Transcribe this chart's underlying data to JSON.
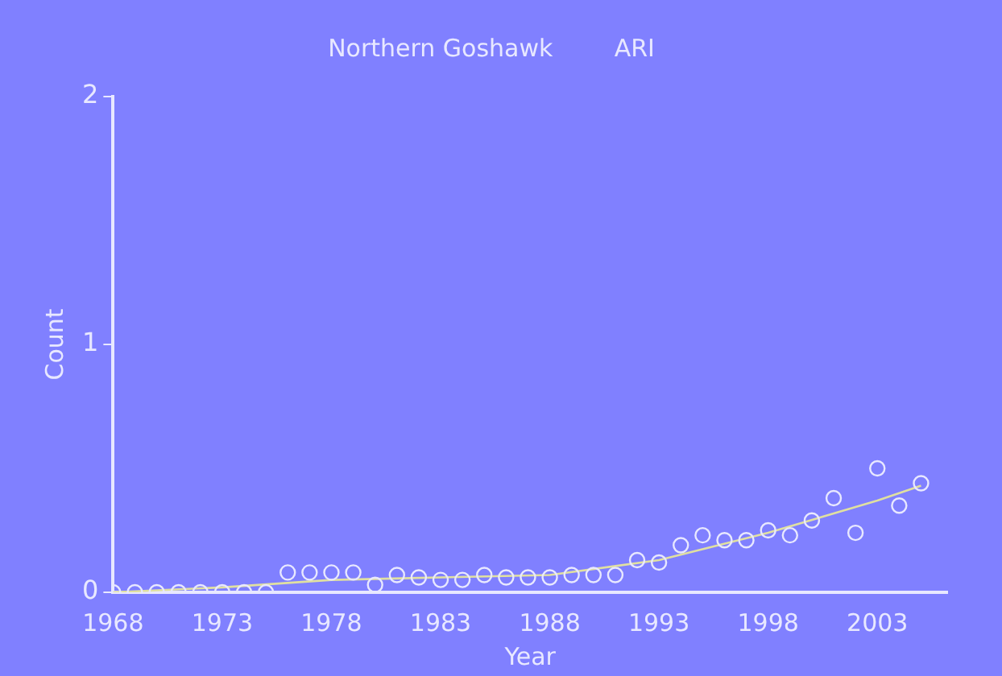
{
  "chart_data": {
    "type": "scatter",
    "title": "Northern Goshawk        ARI",
    "xlabel": "Year",
    "ylabel": "Count",
    "xlim": [
      1968,
      2006.2
    ],
    "xticks": [
      1968,
      1973,
      1978,
      1983,
      1988,
      1993,
      1998,
      2003
    ],
    "ylim": [
      0,
      2
    ],
    "yticks": [
      0,
      1,
      2
    ],
    "grid": false,
    "legend": false,
    "marker": "circle",
    "series": [
      {
        "type": "scatter",
        "color": "#e8e8ff",
        "x": [
          1968,
          1969,
          1970,
          1971,
          1972,
          1973,
          1974,
          1975,
          1976,
          1977,
          1978,
          1979,
          1980,
          1981,
          1982,
          1983,
          1984,
          1985,
          1986,
          1987,
          1988,
          1989,
          1990,
          1991,
          1992,
          1993,
          1994,
          1995,
          1996,
          1997,
          1998,
          1999,
          2000,
          2001,
          2002,
          2003,
          2004,
          2005
        ],
        "values": [
          0,
          0,
          0,
          0,
          0,
          0,
          0,
          0,
          0.08,
          0.08,
          0.08,
          0.08,
          0.03,
          0.07,
          0.06,
          0.05,
          0.05,
          0.07,
          0.06,
          0.06,
          0.06,
          0.07,
          0.07,
          0.07,
          0.13,
          0.12,
          0.19,
          0.23,
          0.21,
          0.21,
          0.25,
          0.23,
          0.29,
          0.38,
          0.24,
          0.5,
          0.35,
          0.44
        ]
      },
      {
        "type": "line",
        "color": "#e0e0a0",
        "marker": "none",
        "x": [
          1968,
          1973,
          1978,
          1983,
          1988,
          1993,
          1998,
          2003,
          2005
        ],
        "values": [
          0,
          0.02,
          0.05,
          0.06,
          0.07,
          0.13,
          0.24,
          0.37,
          0.43
        ]
      }
    ]
  }
}
